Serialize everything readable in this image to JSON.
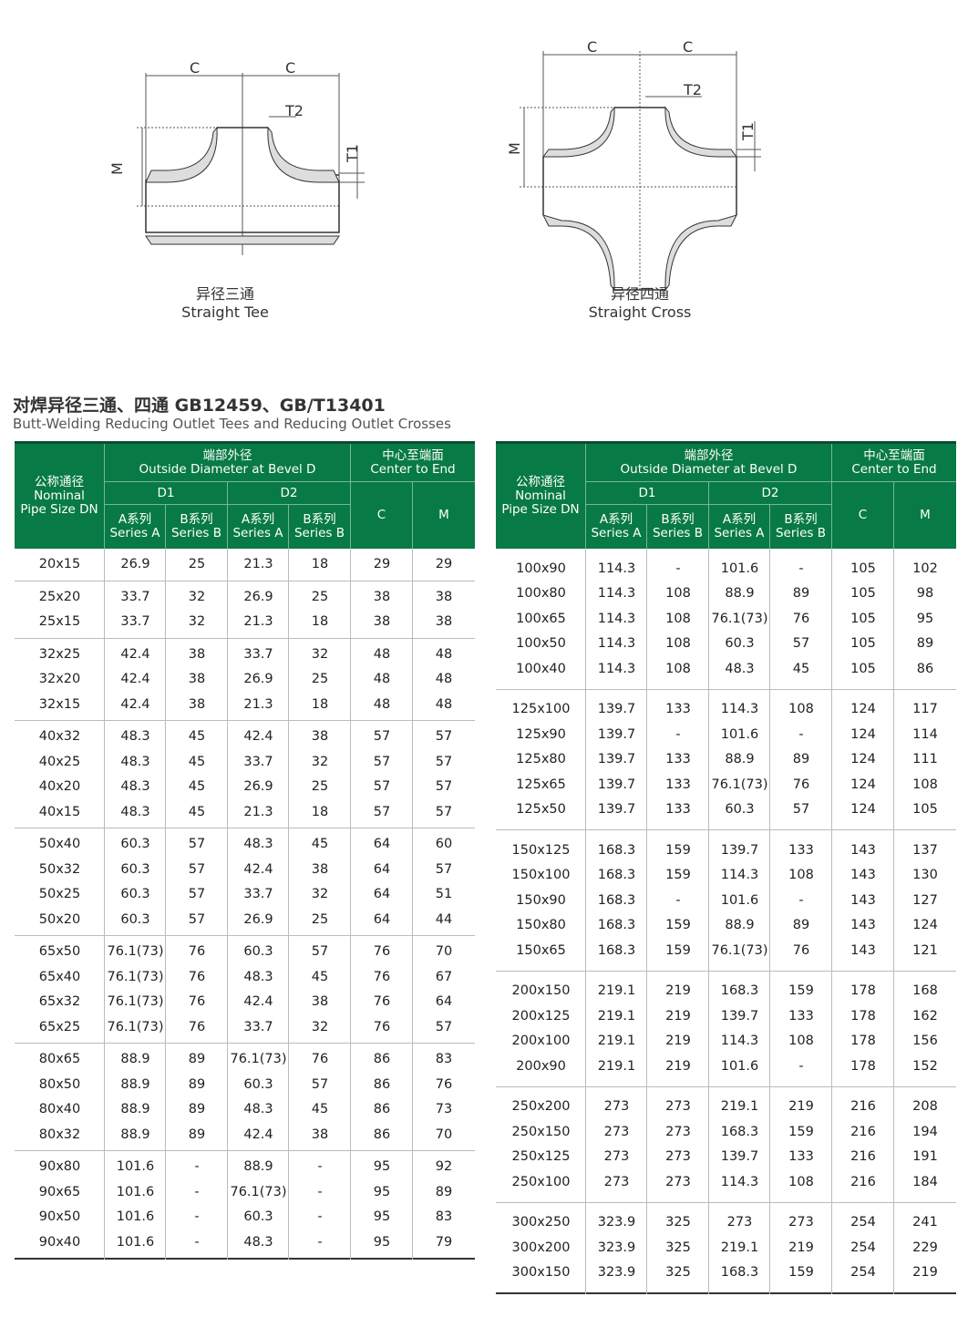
{
  "diagrams": {
    "tee": {
      "labels": {
        "c": "C",
        "t2": "T2",
        "t1": "T1",
        "m": "M"
      },
      "caption_cn": "异径三通",
      "caption_en": "Straight Tee"
    },
    "cross": {
      "labels": {
        "c": "C",
        "t2": "T2",
        "t1": "T1",
        "m": "M"
      },
      "caption_cn": "异径四通",
      "caption_en": "Straight Cross"
    }
  },
  "section": {
    "title_cn": "对焊异径三通、四通 GB12459、GB/T13401",
    "title_en": "Butt-Welding Reducing Outlet Tees and Reducing Outlet Crosses"
  },
  "header": {
    "dn_cn": "公称通径",
    "dn_en1": "Nominal",
    "dn_en2": "Pipe Size DN",
    "od_cn": "端部外径",
    "od_en": "Outside Diameter at Bevel D",
    "ce_cn": "中心至端面",
    "ce_en": "Center to End",
    "d1": "D1",
    "d2": "D2",
    "sa_cn": "A系列",
    "sa_en": "Series A",
    "sb_cn": "B系列",
    "sb_en": "Series B",
    "c": "C",
    "m": "M"
  },
  "colors": {
    "header_bg": "#087a45",
    "header_top": "#0d4d33"
  },
  "left_table": [
    [
      [
        "20x15",
        "26.9",
        "25",
        "21.3",
        "18",
        "29",
        "29"
      ]
    ],
    [
      [
        "25x20",
        "33.7",
        "32",
        "26.9",
        "25",
        "38",
        "38"
      ],
      [
        "25x15",
        "33.7",
        "32",
        "21.3",
        "18",
        "38",
        "38"
      ]
    ],
    [
      [
        "32x25",
        "42.4",
        "38",
        "33.7",
        "32",
        "48",
        "48"
      ],
      [
        "32x20",
        "42.4",
        "38",
        "26.9",
        "25",
        "48",
        "48"
      ],
      [
        "32x15",
        "42.4",
        "38",
        "21.3",
        "18",
        "48",
        "48"
      ]
    ],
    [
      [
        "40x32",
        "48.3",
        "45",
        "42.4",
        "38",
        "57",
        "57"
      ],
      [
        "40x25",
        "48.3",
        "45",
        "33.7",
        "32",
        "57",
        "57"
      ],
      [
        "40x20",
        "48.3",
        "45",
        "26.9",
        "25",
        "57",
        "57"
      ],
      [
        "40x15",
        "48.3",
        "45",
        "21.3",
        "18",
        "57",
        "57"
      ]
    ],
    [
      [
        "50x40",
        "60.3",
        "57",
        "48.3",
        "45",
        "64",
        "60"
      ],
      [
        "50x32",
        "60.3",
        "57",
        "42.4",
        "38",
        "64",
        "57"
      ],
      [
        "50x25",
        "60.3",
        "57",
        "33.7",
        "32",
        "64",
        "51"
      ],
      [
        "50x20",
        "60.3",
        "57",
        "26.9",
        "25",
        "64",
        "44"
      ]
    ],
    [
      [
        "65x50",
        "76.1(73)",
        "76",
        "60.3",
        "57",
        "76",
        "70"
      ],
      [
        "65x40",
        "76.1(73)",
        "76",
        "48.3",
        "45",
        "76",
        "67"
      ],
      [
        "65x32",
        "76.1(73)",
        "76",
        "42.4",
        "38",
        "76",
        "64"
      ],
      [
        "65x25",
        "76.1(73)",
        "76",
        "33.7",
        "32",
        "76",
        "57"
      ]
    ],
    [
      [
        "80x65",
        "88.9",
        "89",
        "76.1(73)",
        "76",
        "86",
        "83"
      ],
      [
        "80x50",
        "88.9",
        "89",
        "60.3",
        "57",
        "86",
        "76"
      ],
      [
        "80x40",
        "88.9",
        "89",
        "48.3",
        "45",
        "86",
        "73"
      ],
      [
        "80x32",
        "88.9",
        "89",
        "42.4",
        "38",
        "86",
        "70"
      ]
    ],
    [
      [
        "90x80",
        "101.6",
        "-",
        "88.9",
        "-",
        "95",
        "92"
      ],
      [
        "90x65",
        "101.6",
        "-",
        "76.1(73)",
        "-",
        "95",
        "89"
      ],
      [
        "90x50",
        "101.6",
        "-",
        "60.3",
        "-",
        "95",
        "83"
      ],
      [
        "90x40",
        "101.6",
        "-",
        "48.3",
        "-",
        "95",
        "79"
      ]
    ]
  ],
  "right_table": [
    [
      [
        "100x90",
        "114.3",
        "-",
        "101.6",
        "-",
        "105",
        "102"
      ],
      [
        "100x80",
        "114.3",
        "108",
        "88.9",
        "89",
        "105",
        "98"
      ],
      [
        "100x65",
        "114.3",
        "108",
        "76.1(73)",
        "76",
        "105",
        "95"
      ],
      [
        "100x50",
        "114.3",
        "108",
        "60.3",
        "57",
        "105",
        "89"
      ],
      [
        "100x40",
        "114.3",
        "108",
        "48.3",
        "45",
        "105",
        "86"
      ]
    ],
    [
      [
        "125x100",
        "139.7",
        "133",
        "114.3",
        "108",
        "124",
        "117"
      ],
      [
        "125x90",
        "139.7",
        "-",
        "101.6",
        "-",
        "124",
        "114"
      ],
      [
        "125x80",
        "139.7",
        "133",
        "88.9",
        "89",
        "124",
        "111"
      ],
      [
        "125x65",
        "139.7",
        "133",
        "76.1(73)",
        "76",
        "124",
        "108"
      ],
      [
        "125x50",
        "139.7",
        "133",
        "60.3",
        "57",
        "124",
        "105"
      ]
    ],
    [
      [
        "150x125",
        "168.3",
        "159",
        "139.7",
        "133",
        "143",
        "137"
      ],
      [
        "150x100",
        "168.3",
        "159",
        "114.3",
        "108",
        "143",
        "130"
      ],
      [
        "150x90",
        "168.3",
        "-",
        "101.6",
        "-",
        "143",
        "127"
      ],
      [
        "150x80",
        "168.3",
        "159",
        "88.9",
        "89",
        "143",
        "124"
      ],
      [
        "150x65",
        "168.3",
        "159",
        "76.1(73)",
        "76",
        "143",
        "121"
      ]
    ],
    [
      [
        "200x150",
        "219.1",
        "219",
        "168.3",
        "159",
        "178",
        "168"
      ],
      [
        "200x125",
        "219.1",
        "219",
        "139.7",
        "133",
        "178",
        "162"
      ],
      [
        "200x100",
        "219.1",
        "219",
        "114.3",
        "108",
        "178",
        "156"
      ],
      [
        "200x90",
        "219.1",
        "219",
        "101.6",
        "-",
        "178",
        "152"
      ]
    ],
    [
      [
        "250x200",
        "273",
        "273",
        "219.1",
        "219",
        "216",
        "208"
      ],
      [
        "250x150",
        "273",
        "273",
        "168.3",
        "159",
        "216",
        "194"
      ],
      [
        "250x125",
        "273",
        "273",
        "139.7",
        "133",
        "216",
        "191"
      ],
      [
        "250x100",
        "273",
        "273",
        "114.3",
        "108",
        "216",
        "184"
      ]
    ],
    [
      [
        "300x250",
        "323.9",
        "325",
        "273",
        "273",
        "254",
        "241"
      ],
      [
        "300x200",
        "323.9",
        "325",
        "219.1",
        "219",
        "254",
        "229"
      ],
      [
        "300x150",
        "323.9",
        "325",
        "168.3",
        "159",
        "254",
        "219"
      ]
    ]
  ]
}
